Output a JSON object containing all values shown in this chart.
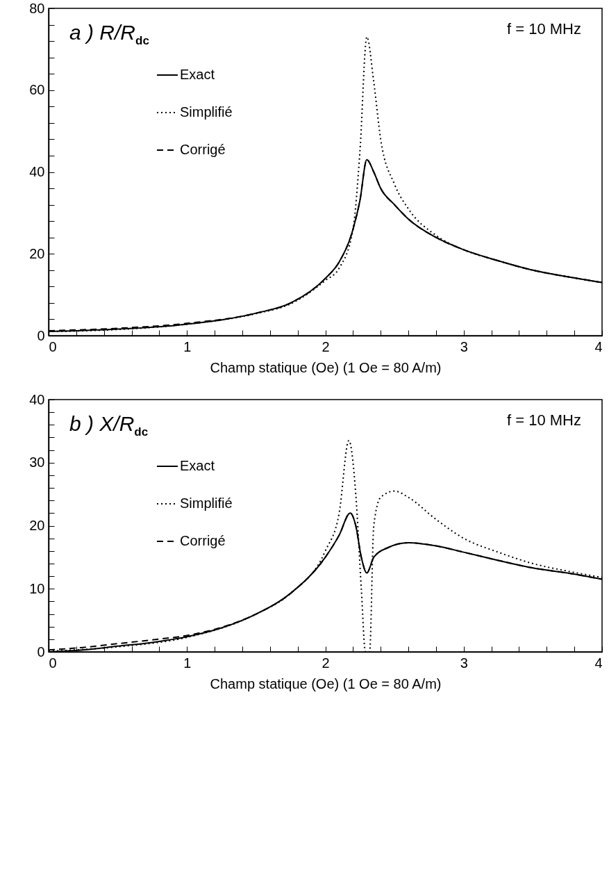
{
  "chart_data": [
    {
      "type": "line",
      "title": "a ) R/R$_{dc}$",
      "xlabel": "Champ statique (Oe)  (1 Oe = 80 A/m)",
      "annotations": [
        "f = 10 MHz"
      ],
      "legend": "top left",
      "xlim": [
        0,
        4
      ],
      "xticks": [
        0,
        {
          "value": 0.2,
          "label": null
        },
        {
          "value": 0.4,
          "label": null
        },
        {
          "value": 0.6,
          "label": null
        },
        {
          "value": 0.8,
          "label": null
        },
        1,
        {
          "value": 1.2,
          "label": null
        },
        {
          "value": 1.4,
          "label": null
        },
        {
          "value": 1.6,
          "label": null
        },
        {
          "value": 1.8,
          "label": null
        },
        2,
        {
          "value": 2.2,
          "label": null
        },
        {
          "value": 2.4,
          "label": null
        },
        {
          "value": 2.6,
          "label": null
        },
        {
          "value": 2.8,
          "label": null
        },
        3,
        {
          "value": 3.2,
          "label": null
        },
        {
          "value": 3.4,
          "label": null
        },
        {
          "value": 3.6,
          "label": null
        },
        {
          "value": 3.8,
          "label": null
        },
        4
      ],
      "ylim": [
        0,
        80
      ],
      "yticks": [
        0,
        {
          "value": 4,
          "label": null
        },
        {
          "value": 8,
          "label": null
        },
        {
          "value": 12,
          "label": null
        },
        {
          "value": 16,
          "label": null
        },
        20,
        {
          "value": 24,
          "label": null
        },
        {
          "value": 28,
          "label": null
        },
        {
          "value": 32,
          "label": null
        },
        {
          "value": 36,
          "label": null
        },
        40,
        {
          "value": 44,
          "label": null
        },
        {
          "value": 48,
          "label": null
        },
        {
          "value": 52,
          "label": null
        },
        {
          "value": 56,
          "label": null
        },
        60,
        {
          "value": 64,
          "label": null
        },
        {
          "value": 68,
          "label": null
        },
        {
          "value": 72,
          "label": null
        },
        {
          "value": 76,
          "label": null
        },
        80
      ],
      "series": [
        {
          "name": "Exact",
          "color": "#000000",
          "line_style": "solid",
          "x": [
            0,
            0.5,
            1,
            1.5,
            1.75,
            2,
            2.1,
            2.2,
            2.25,
            2.3,
            2.35,
            2.4,
            2.5,
            2.6,
            2.8,
            3,
            3.25,
            3.5,
            3.75,
            4
          ],
          "values": [
            1,
            1.6,
            2.8,
            5.5,
            8,
            14,
            18,
            26,
            33,
            43,
            40,
            36,
            32,
            28.5,
            24,
            21,
            18.3,
            16,
            14.4,
            13
          ]
        },
        {
          "name": "Simplifié",
          "color": "#000000",
          "line_style": "dotted",
          "x": [
            0,
            0.5,
            1,
            1.5,
            1.75,
            2,
            2.1,
            2.2,
            2.25,
            2.3,
            2.35,
            2.4,
            2.5,
            2.6,
            2.8,
            3,
            3.25,
            3.5,
            3.75,
            4
          ],
          "values": [
            1,
            1.5,
            2.8,
            5.4,
            7.8,
            13.5,
            16.5,
            26,
            45,
            73,
            62,
            48,
            37,
            31,
            24.5,
            21,
            18.3,
            16,
            14.4,
            13
          ]
        },
        {
          "name": "Corrigé",
          "color": "#000000",
          "line_style": "dashed",
          "x": [
            0,
            0.5,
            1,
            1.5,
            1.75,
            2,
            2.1,
            2.2,
            2.25,
            2.3,
            2.35,
            2.4,
            2.5,
            2.6,
            2.8,
            3,
            3.25,
            3.5,
            3.75,
            4
          ],
          "values": [
            1.2,
            1.8,
            3,
            5.5,
            8,
            14,
            18,
            26,
            33,
            43,
            40,
            36,
            32,
            28.5,
            24,
            21,
            18.3,
            16,
            14.4,
            13
          ]
        }
      ]
    },
    {
      "type": "line",
      "title": "b ) X/R$_{dc}$",
      "xlabel": "Champ statique (Oe)  (1 Oe = 80 A/m)",
      "annotations": [
        "f = 10 MHz"
      ],
      "legend": "top left",
      "xlim": [
        0,
        4
      ],
      "xticks": [
        0,
        {
          "value": 0.2,
          "label": null
        },
        {
          "value": 0.4,
          "label": null
        },
        {
          "value": 0.6,
          "label": null
        },
        {
          "value": 0.8,
          "label": null
        },
        1,
        {
          "value": 1.2,
          "label": null
        },
        {
          "value": 1.4,
          "label": null
        },
        {
          "value": 1.6,
          "label": null
        },
        {
          "value": 1.8,
          "label": null
        },
        2,
        {
          "value": 2.2,
          "label": null
        },
        {
          "value": 2.4,
          "label": null
        },
        {
          "value": 2.6,
          "label": null
        },
        {
          "value": 2.8,
          "label": null
        },
        3,
        {
          "value": 3.2,
          "label": null
        },
        {
          "value": 3.4,
          "label": null
        },
        {
          "value": 3.6,
          "label": null
        },
        {
          "value": 3.8,
          "label": null
        },
        4
      ],
      "ylim": [
        0,
        40
      ],
      "yticks": [
        0,
        {
          "value": 2,
          "label": null
        },
        {
          "value": 4,
          "label": null
        },
        {
          "value": 6,
          "label": null
        },
        {
          "value": 8,
          "label": null
        },
        10,
        {
          "value": 12,
          "label": null
        },
        {
          "value": 14,
          "label": null
        },
        {
          "value": 16,
          "label": null
        },
        {
          "value": 18,
          "label": null
        },
        20,
        {
          "value": 22,
          "label": null
        },
        {
          "value": 24,
          "label": null
        },
        {
          "value": 26,
          "label": null
        },
        {
          "value": 28,
          "label": null
        },
        30,
        {
          "value": 32,
          "label": null
        },
        {
          "value": 34,
          "label": null
        },
        {
          "value": 36,
          "label": null
        },
        {
          "value": 38,
          "label": null
        },
        40
      ],
      "series": [
        {
          "name": "Exact",
          "color": "#000000",
          "line_style": "solid",
          "x": [
            0,
            0.25,
            0.5,
            0.75,
            1,
            1.25,
            1.5,
            1.75,
            2,
            2.1,
            2.18,
            2.22,
            2.26,
            2.3,
            2.35,
            2.45,
            2.6,
            2.8,
            3,
            3.25,
            3.5,
            3.75,
            4
          ],
          "values": [
            0,
            0.3,
            0.9,
            1.5,
            2.4,
            3.8,
            6,
            9.3,
            15,
            18.5,
            22,
            20,
            15,
            12.5,
            15,
            16.5,
            17.3,
            16.8,
            15.8,
            14.5,
            13.3,
            12.5,
            11.5
          ]
        },
        {
          "name": "Simplifié",
          "color": "#000000",
          "line_style": "dotted",
          "x": [
            0,
            0.5,
            1,
            1.5,
            1.75,
            2,
            2.1,
            2.17,
            2.22,
            2.26,
            2.29,
            2.32,
            2.35,
            2.4,
            2.5,
            2.6,
            2.8,
            3,
            3.25,
            3.5,
            3.75,
            4
          ],
          "values": [
            0.1,
            0.8,
            2.3,
            6,
            9.3,
            16,
            22,
            33.5,
            25,
            10,
            0,
            0,
            20,
            24.5,
            25.5,
            24.5,
            21,
            18,
            15.8,
            14,
            12.8,
            11.8
          ]
        },
        {
          "name": "Corrigé",
          "color": "#000000",
          "line_style": "dashed",
          "x": [
            0,
            0.25,
            0.5,
            0.75,
            1,
            1.25,
            1.5,
            1.75,
            2,
            2.1,
            2.18,
            2.22,
            2.26,
            2.3,
            2.35,
            2.45,
            2.6,
            2.8,
            3,
            3.25,
            3.5,
            3.75,
            4
          ],
          "values": [
            0.3,
            0.7,
            1.3,
            1.9,
            2.6,
            3.9,
            6,
            9.3,
            15,
            18.5,
            22,
            20,
            15,
            12.5,
            15,
            16.5,
            17.3,
            16.8,
            15.8,
            14.5,
            13.3,
            12.5,
            11.5
          ]
        }
      ]
    }
  ]
}
